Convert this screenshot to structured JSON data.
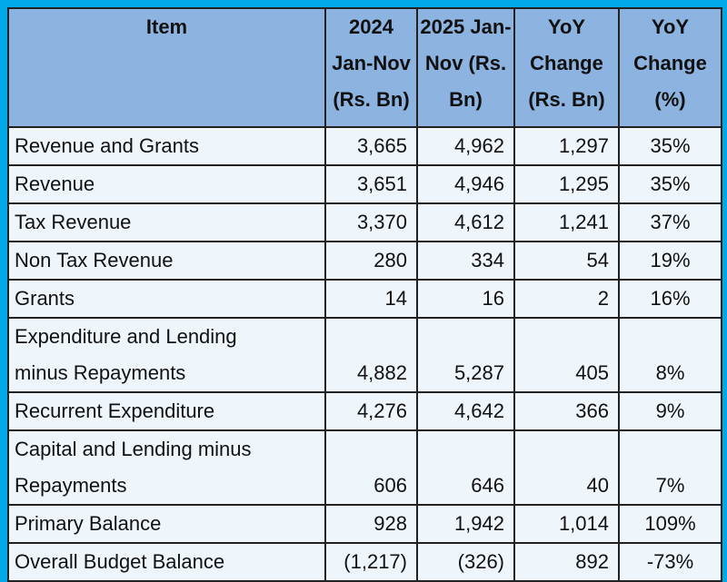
{
  "colors": {
    "frame": "#00a8e8",
    "header_bg": "#8db4e0",
    "body_bg": "#eef6fc"
  },
  "header": {
    "item": "Item",
    "col2024": [
      "2024",
      "Jan-Nov",
      "(Rs. Bn)"
    ],
    "col2025": [
      "2025 Jan-",
      "Nov (Rs.",
      "Bn)"
    ],
    "yoy_abs": [
      "YoY",
      "Change",
      "(Rs. Bn)"
    ],
    "yoy_pct": [
      "YoY",
      "Change",
      "(%)"
    ]
  },
  "rows": [
    {
      "item": [
        "Revenue and Grants"
      ],
      "v2024": "3,665",
      "v2025": "4,962",
      "change": "1,297",
      "pct": "35%"
    },
    {
      "item": [
        "Revenue"
      ],
      "v2024": "3,651",
      "v2025": "4,946",
      "change": "1,295",
      "pct": "35%"
    },
    {
      "item": [
        "Tax Revenue"
      ],
      "v2024": "3,370",
      "v2025": "4,612",
      "change": "1,241",
      "pct": "37%"
    },
    {
      "item": [
        "Non Tax Revenue"
      ],
      "v2024": "280",
      "v2025": "334",
      "change": "54",
      "pct": "19%"
    },
    {
      "item": [
        "Grants"
      ],
      "v2024": "14",
      "v2025": "16",
      "change": "2",
      "pct": "16%"
    },
    {
      "item": [
        "Expenditure and Lending",
        "minus Repayments"
      ],
      "v2024": "4,882",
      "v2025": "5,287",
      "change": "405",
      "pct": "8%"
    },
    {
      "item": [
        "Recurrent Expenditure"
      ],
      "v2024": "4,276",
      "v2025": "4,642",
      "change": "366",
      "pct": "9%"
    },
    {
      "item": [
        "Capital and Lending minus",
        "Repayments"
      ],
      "v2024": "606",
      "v2025": "646",
      "change": "40",
      "pct": "7%"
    },
    {
      "item": [
        "Primary Balance"
      ],
      "v2024": "928",
      "v2025": "1,942",
      "change": "1,014",
      "pct": "109%"
    },
    {
      "item": [
        "Overall Budget Balance"
      ],
      "v2024": "(1,217)",
      "v2025": "(326)",
      "change": "892",
      "pct": "-73%"
    }
  ]
}
